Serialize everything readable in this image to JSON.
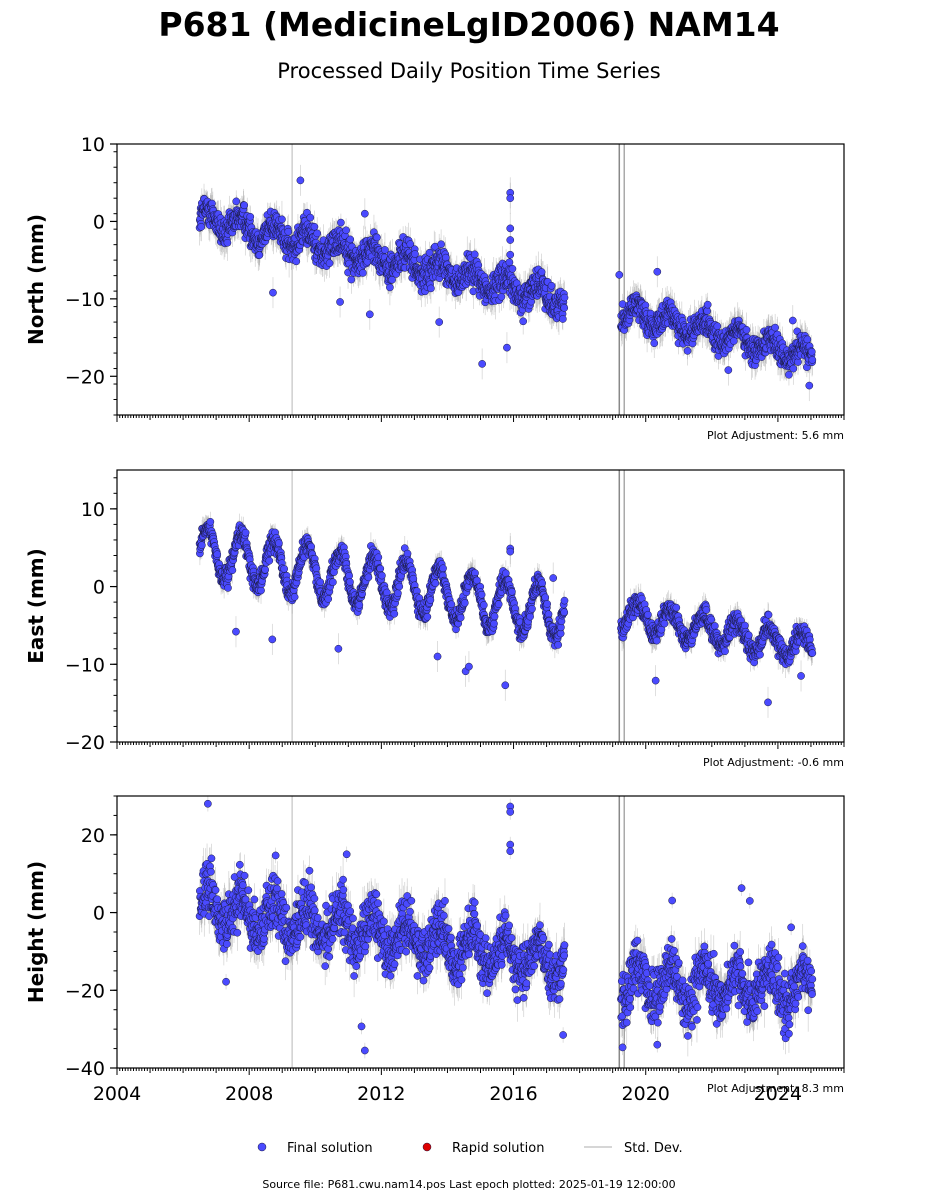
{
  "title": "P681 (MedicineLgID2006) NAM14",
  "subtitle": "Processed Daily Position Time Series",
  "source_text": "Source file: P681.cwu.nam14.pos  Last epoch plotted: 2025-01-19 12:00:00",
  "legend": [
    {
      "label": "Final solution",
      "color": "#4a4aff",
      "marker": "circle"
    },
    {
      "label": "Rapid solution",
      "color": "#dd0000",
      "marker": "circle"
    },
    {
      "label": "Std. Dev.",
      "color": "#c8c8c8",
      "marker": "line"
    }
  ],
  "chart_data": [
    {
      "type": "scatter",
      "name": "north",
      "ylabel": "North (mm)",
      "adjustment": "Plot Adjustment: 5.6 mm",
      "xlim": [
        2004,
        2026
      ],
      "ylim": [
        -25,
        10
      ],
      "yticks": [
        -20,
        -10,
        0,
        10
      ],
      "yminor": 2,
      "segments": [
        {
          "x_start": 2006.5,
          "x_end": 2017.55,
          "y_start": 0.5,
          "y_end": -10.0,
          "seasonal_amp": 1.3,
          "scatter": 1.4,
          "sigma": 1.6
        },
        {
          "x_start": 2019.25,
          "x_end": 2025.05,
          "y_start": -11.5,
          "y_end": -17.5,
          "seasonal_amp": 1.3,
          "scatter": 1.2,
          "sigma": 1.6
        }
      ],
      "outliers": [
        {
          "x": 2008.72,
          "y": -9.2
        },
        {
          "x": 2009.55,
          "y": 5.3
        },
        {
          "x": 2010.75,
          "y": -10.4
        },
        {
          "x": 2011.5,
          "y": 1.0
        },
        {
          "x": 2011.65,
          "y": -12.0
        },
        {
          "x": 2013.75,
          "y": -13.0
        },
        {
          "x": 2015.05,
          "y": -18.4
        },
        {
          "x": 2015.8,
          "y": -16.3
        },
        {
          "x": 2015.9,
          "y": 3.7
        },
        {
          "x": 2015.9,
          "y": 3.0
        },
        {
          "x": 2015.9,
          "y": -2.4
        },
        {
          "x": 2015.9,
          "y": -0.9
        },
        {
          "x": 2015.9,
          "y": -4.3
        },
        {
          "x": 2019.2,
          "y": -6.9
        },
        {
          "x": 2020.35,
          "y": -6.5
        },
        {
          "x": 2022.5,
          "y": -19.2
        },
        {
          "x": 2024.45,
          "y": -12.8
        },
        {
          "x": 2024.95,
          "y": -21.2
        }
      ],
      "spikes": [
        {
          "x": 2009.3,
          "y1": -25,
          "y2": 10,
          "color": "#cfcfcf"
        },
        {
          "x": 2019.2,
          "y1": -25,
          "y2": 10,
          "color": "#888888"
        },
        {
          "x": 2019.35,
          "y1": -25,
          "y2": 10,
          "color": "#aaaaaa"
        }
      ]
    },
    {
      "type": "scatter",
      "name": "east",
      "ylabel": "East (mm)",
      "adjustment": "Plot Adjustment: -0.6 mm",
      "xlim": [
        2004,
        2026
      ],
      "ylim": [
        -20,
        15
      ],
      "yticks": [
        -20,
        -10,
        0,
        10
      ],
      "yminor": 2,
      "segments": [
        {
          "x_start": 2006.5,
          "x_end": 2017.55,
          "y_start": 4.5,
          "y_end": -3.5,
          "seasonal_amp": 3.2,
          "scatter": 0.9,
          "sigma": 1.2
        },
        {
          "x_start": 2019.25,
          "x_end": 2025.05,
          "y_start": -3.5,
          "y_end": -8.0,
          "seasonal_amp": 1.8,
          "scatter": 0.9,
          "sigma": 1.2
        }
      ],
      "outliers": [
        {
          "x": 2007.6,
          "y": -5.8
        },
        {
          "x": 2008.7,
          "y": -6.8
        },
        {
          "x": 2010.7,
          "y": -8.0
        },
        {
          "x": 2013.7,
          "y": -9.0
        },
        {
          "x": 2014.55,
          "y": -10.9
        },
        {
          "x": 2014.65,
          "y": -10.3
        },
        {
          "x": 2015.75,
          "y": -12.7
        },
        {
          "x": 2015.9,
          "y": 4.9
        },
        {
          "x": 2015.9,
          "y": 4.5
        },
        {
          "x": 2017.2,
          "y": 1.1
        },
        {
          "x": 2020.3,
          "y": -12.1
        },
        {
          "x": 2023.7,
          "y": -14.9
        },
        {
          "x": 2024.7,
          "y": -11.5
        }
      ],
      "spikes": [
        {
          "x": 2009.3,
          "y1": -20,
          "y2": 15,
          "color": "#cfcfcf"
        },
        {
          "x": 2019.2,
          "y1": -20,
          "y2": 15,
          "color": "#888888"
        },
        {
          "x": 2019.35,
          "y1": -20,
          "y2": 15,
          "color": "#aaaaaa"
        }
      ]
    },
    {
      "type": "scatter",
      "name": "height",
      "ylabel": "Height (mm)",
      "adjustment": "Plot Adjustment: 8.3 mm",
      "xlim": [
        2004,
        2026
      ],
      "ylim": [
        -40,
        30
      ],
      "yticks": [
        -40,
        -20,
        0,
        20
      ],
      "yminor": 5,
      "xticks": [
        2004,
        2008,
        2012,
        2016,
        2020,
        2024
      ],
      "segments": [
        {
          "x_start": 2006.5,
          "x_end": 2017.55,
          "y_start": 2.0,
          "y_end": -13.0,
          "seasonal_amp": 4.5,
          "scatter": 4.8,
          "sigma": 4.0
        },
        {
          "x_start": 2019.25,
          "x_end": 2025.05,
          "y_start": -18.0,
          "y_end": -20.0,
          "seasonal_amp": 4.5,
          "scatter": 4.8,
          "sigma": 4.0
        }
      ],
      "outliers": [
        {
          "x": 2006.75,
          "y": 28.0
        },
        {
          "x": 2007.3,
          "y": -17.8
        },
        {
          "x": 2008.8,
          "y": 14.7
        },
        {
          "x": 2010.95,
          "y": 15.0
        },
        {
          "x": 2011.4,
          "y": -29.3
        },
        {
          "x": 2011.5,
          "y": -35.5
        },
        {
          "x": 2015.9,
          "y": 27.3
        },
        {
          "x": 2015.9,
          "y": 25.9
        },
        {
          "x": 2015.9,
          "y": 17.5
        },
        {
          "x": 2015.9,
          "y": 15.8
        },
        {
          "x": 2017.5,
          "y": -31.5
        },
        {
          "x": 2019.3,
          "y": -34.7
        },
        {
          "x": 2020.35,
          "y": -34.0
        },
        {
          "x": 2020.8,
          "y": 3.1
        },
        {
          "x": 2022.9,
          "y": 6.3
        },
        {
          "x": 2023.15,
          "y": 3.0
        },
        {
          "x": 2024.4,
          "y": -3.8
        }
      ],
      "spikes": [
        {
          "x": 2009.3,
          "y1": -40,
          "y2": 30,
          "color": "#cfcfcf"
        },
        {
          "x": 2019.2,
          "y1": -40,
          "y2": 30,
          "color": "#888888"
        },
        {
          "x": 2019.35,
          "y1": -40,
          "y2": 30,
          "color": "#aaaaaa"
        }
      ]
    }
  ]
}
